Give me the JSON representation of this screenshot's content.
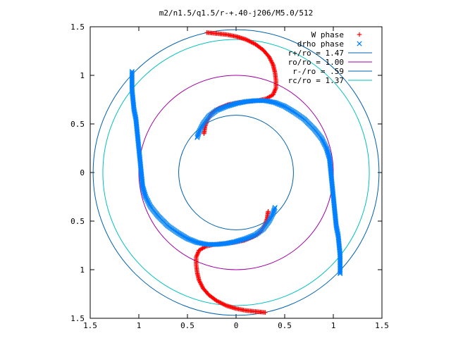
{
  "chart_data": {
    "type": "scatter",
    "title": "m2/n1.5/q1.5/r-+.40-j206/M5.0/512",
    "xlabel": "",
    "ylabel": "",
    "xlim": [
      -1.5,
      1.5
    ],
    "ylim": [
      -1.5,
      1.5
    ],
    "xticks": [
      -1.5,
      -1,
      -0.5,
      0,
      0.5,
      1,
      1.5
    ],
    "yticks": [
      -1.5,
      -1,
      -0.5,
      0,
      0.5,
      1,
      1.5
    ],
    "xtick_labels": [
      "1.5",
      "1",
      "0.5",
      "0",
      "0.5",
      "1",
      "1.5"
    ],
    "ytick_labels": [
      "1.5",
      "1",
      "0.5",
      "0",
      "0.5",
      "1",
      "1.5"
    ],
    "grid": false,
    "legend_position": "top-right",
    "series": [
      {
        "name": "W phase",
        "marker": "+",
        "color": "#ff0000",
        "points": [
          [
            -0.3,
            1.44
          ],
          [
            -0.2,
            1.43
          ],
          [
            -0.1,
            1.42
          ],
          [
            0.0,
            1.4
          ],
          [
            0.1,
            1.37
          ],
          [
            0.2,
            1.32
          ],
          [
            0.28,
            1.26
          ],
          [
            0.34,
            1.19
          ],
          [
            0.38,
            1.11
          ],
          [
            0.4,
            1.03
          ],
          [
            0.41,
            0.95
          ],
          [
            0.41,
            0.87
          ],
          [
            0.38,
            0.8
          ],
          [
            0.31,
            0.76
          ],
          [
            0.22,
            0.74
          ],
          [
            0.12,
            0.73
          ],
          [
            0.02,
            0.72
          ],
          [
            -0.08,
            0.7
          ],
          [
            -0.18,
            0.66
          ],
          [
            -0.26,
            0.6
          ],
          [
            -0.3,
            0.53
          ],
          [
            -0.32,
            0.47
          ],
          [
            -0.33,
            0.4
          ],
          [
            0.3,
            -1.44
          ],
          [
            0.2,
            -1.43
          ],
          [
            0.1,
            -1.42
          ],
          [
            0.0,
            -1.4
          ],
          [
            -0.1,
            -1.37
          ],
          [
            -0.2,
            -1.32
          ],
          [
            -0.28,
            -1.26
          ],
          [
            -0.34,
            -1.19
          ],
          [
            -0.38,
            -1.11
          ],
          [
            -0.4,
            -1.03
          ],
          [
            -0.41,
            -0.95
          ],
          [
            -0.41,
            -0.87
          ],
          [
            -0.38,
            -0.8
          ],
          [
            -0.31,
            -0.76
          ],
          [
            -0.22,
            -0.74
          ],
          [
            -0.12,
            -0.73
          ],
          [
            -0.02,
            -0.72
          ],
          [
            0.08,
            -0.7
          ],
          [
            0.18,
            -0.66
          ],
          [
            0.26,
            -0.6
          ],
          [
            0.3,
            -0.53
          ],
          [
            0.32,
            -0.47
          ],
          [
            0.33,
            -0.4
          ]
        ]
      },
      {
        "name": "drho phase",
        "marker": "x",
        "color": "#0080ff",
        "points": [
          [
            -1.07,
            1.04
          ],
          [
            -1.07,
            0.95
          ],
          [
            -1.07,
            0.85
          ],
          [
            -1.06,
            0.75
          ],
          [
            -1.05,
            0.65
          ],
          [
            -1.03,
            0.55
          ],
          [
            -1.02,
            0.45
          ],
          [
            -1.01,
            0.35
          ],
          [
            -1.0,
            0.25
          ],
          [
            -0.99,
            0.15
          ],
          [
            -0.98,
            0.05
          ],
          [
            -0.97,
            -0.05
          ],
          [
            -0.96,
            -0.15
          ],
          [
            -0.93,
            -0.25
          ],
          [
            -0.88,
            -0.35
          ],
          [
            -0.8,
            -0.45
          ],
          [
            -0.7,
            -0.55
          ],
          [
            -0.6,
            -0.62
          ],
          [
            -0.5,
            -0.68
          ],
          [
            -0.4,
            -0.72
          ],
          [
            -0.3,
            -0.74
          ],
          [
            -0.2,
            -0.74
          ],
          [
            -0.1,
            -0.73
          ],
          [
            0.0,
            -0.71
          ],
          [
            0.1,
            -0.68
          ],
          [
            0.2,
            -0.64
          ],
          [
            0.28,
            -0.58
          ],
          [
            0.34,
            -0.5
          ],
          [
            0.38,
            -0.42
          ],
          [
            0.4,
            -0.36
          ],
          [
            1.07,
            -1.04
          ],
          [
            1.07,
            -0.95
          ],
          [
            1.07,
            -0.85
          ],
          [
            1.06,
            -0.75
          ],
          [
            1.05,
            -0.65
          ],
          [
            1.03,
            -0.55
          ],
          [
            1.02,
            -0.45
          ],
          [
            1.01,
            -0.35
          ],
          [
            1.0,
            -0.25
          ],
          [
            0.99,
            -0.15
          ],
          [
            0.98,
            -0.05
          ],
          [
            0.97,
            0.05
          ],
          [
            0.96,
            0.15
          ],
          [
            0.93,
            0.25
          ],
          [
            0.88,
            0.35
          ],
          [
            0.8,
            0.45
          ],
          [
            0.7,
            0.55
          ],
          [
            0.6,
            0.62
          ],
          [
            0.5,
            0.68
          ],
          [
            0.4,
            0.72
          ],
          [
            0.3,
            0.74
          ],
          [
            0.2,
            0.74
          ],
          [
            0.1,
            0.73
          ],
          [
            0.0,
            0.71
          ],
          [
            -0.1,
            0.68
          ],
          [
            -0.2,
            0.64
          ],
          [
            -0.28,
            0.58
          ],
          [
            -0.34,
            0.5
          ],
          [
            -0.38,
            0.42
          ],
          [
            -0.4,
            0.36
          ]
        ]
      }
    ],
    "circles": [
      {
        "name": "r+/ro = 1.47",
        "radius": 1.47,
        "color": "#0060ad"
      },
      {
        "name": "ro/ro = 1.00",
        "radius": 1.0,
        "color": "#a000a0"
      },
      {
        "name": "r-/ro = .59",
        "radius": 0.59,
        "color": "#0060ad"
      },
      {
        "name": "rc/ro = 1.37",
        "radius": 1.37,
        "color": "#00c0c0"
      }
    ]
  }
}
